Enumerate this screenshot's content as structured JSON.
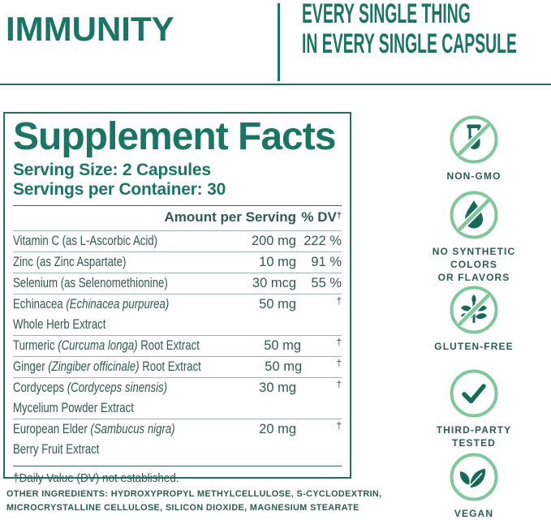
{
  "header": {
    "title": "IMMUNITY",
    "tagline_line1": "EVERY SINGLE THING",
    "tagline_line2": "IN EVERY SINGLE CAPSULE"
  },
  "panel": {
    "title": "Supplement Facts",
    "serving_size": "Serving Size: 2 Capsules",
    "servings_per_container": "Servings per Container: 30",
    "col_amount": "Amount per Serving",
    "col_dv": "% DV",
    "col_dv_dagger": "†",
    "rows": [
      {
        "pre": "Vitamin C (as L-Ascorbic Acid)",
        "latin": "",
        "post": "",
        "line2": "",
        "amount": "200 mg",
        "dv": "222 %",
        "dagger": false
      },
      {
        "pre": "Zinc (as Zinc Aspartate)",
        "latin": "",
        "post": "",
        "line2": "",
        "amount": "10 mg",
        "dv": "91 %",
        "dagger": false
      },
      {
        "pre": "Selenium (as Selenomethionine)",
        "latin": "",
        "post": "",
        "line2": "",
        "amount": "30 mcg",
        "dv": "55 %",
        "dagger": false
      },
      {
        "pre": "Echinacea ",
        "latin": "(Echinacea purpurea)",
        "post": "",
        "line2": "Whole Herb Extract",
        "amount": "50 mg",
        "dv": "†",
        "dagger": true
      },
      {
        "pre": "Turmeric ",
        "latin": "(Curcuma longa)",
        "post": " Root Extract",
        "line2": "",
        "amount": "50 mg",
        "dv": "†",
        "dagger": true
      },
      {
        "pre": "Ginger ",
        "latin": "(Zingiber officinale)",
        "post": " Root Extract",
        "line2": "",
        "amount": "50 mg",
        "dv": "†",
        "dagger": true
      },
      {
        "pre": "Cordyceps ",
        "latin": "(Cordyceps sinensis)",
        "post": "",
        "line2": "Mycelium Powder Extract",
        "amount": "30 mg",
        "dv": "†",
        "dagger": true
      },
      {
        "pre": "European Elder ",
        "latin": "(Sambucus nigra)",
        "post": "",
        "line2": "Berry Fruit Extract",
        "amount": "20 mg",
        "dv": "†",
        "dagger": true
      }
    ],
    "footnote": "†Daily Value (DV) not established."
  },
  "other_ingredients": {
    "label": "OTHER INGREDIENTS:",
    "line1_rest": " HYDROXYPROPYL METHYLCELLULOSE, S-CYCLODEXTRIN,",
    "line2": "MICROCRYSTALLINE CELLULOSE, SILICON DIOXIDE, MAGNESIUM STEARATE"
  },
  "badges": [
    {
      "icon": "no-gmo-testtube-icon",
      "lines": [
        "NON-GMO"
      ]
    },
    {
      "icon": "no-synthetic-droplet-icon",
      "lines": [
        "NO SYNTHETIC",
        "COLORS",
        "OR FLAVORS"
      ]
    },
    {
      "icon": "gluten-free-wheat-icon",
      "lines": [
        "GLUTEN-FREE"
      ]
    },
    {
      "icon": "third-party-check-icon",
      "lines": [
        "THIRD-PARTY",
        "TESTED"
      ]
    },
    {
      "icon": "vegan-leaf-icon",
      "lines": [
        "VEGAN"
      ]
    }
  ],
  "colors": {
    "teal": "#1a7664",
    "body_text": "#315a50",
    "light_green": "#7fc79c",
    "icon_dark": "#176a57",
    "rule_minor": "#9db3ac",
    "rule_major": "#3d6b5f",
    "panel_border": "#2c6c5e"
  }
}
